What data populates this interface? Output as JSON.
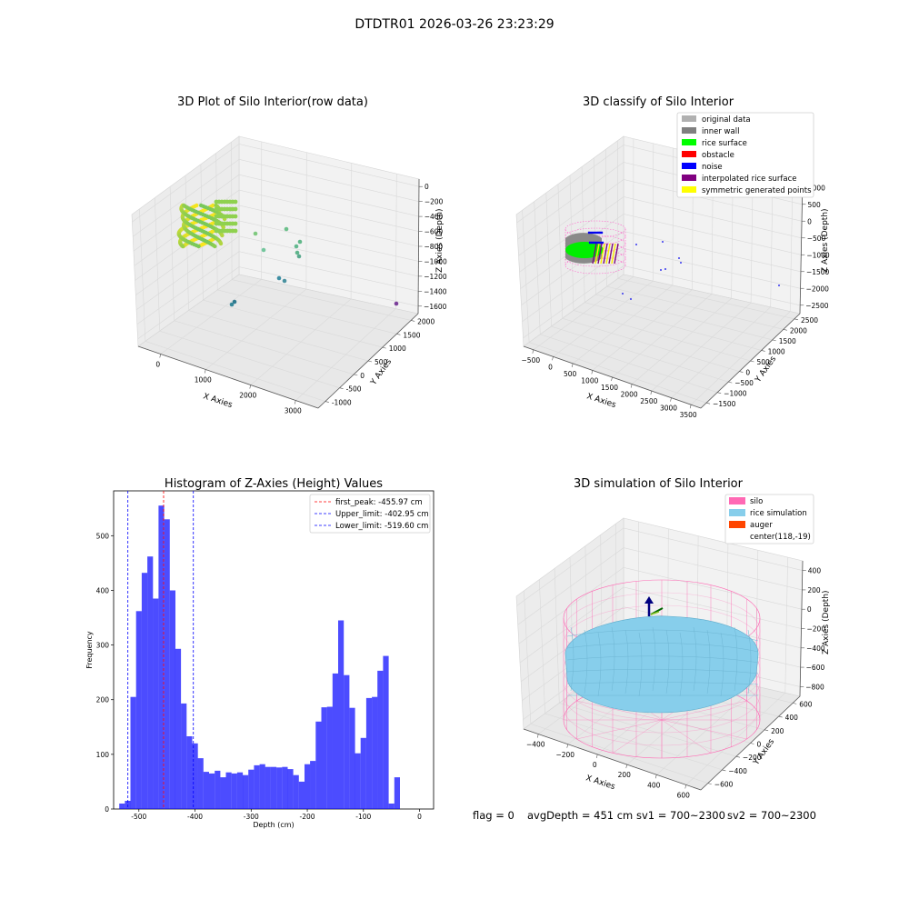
{
  "suptitle": "DTDTR01 2026-03-26 23:23:29",
  "footer": {
    "flag": "flag = 0",
    "avg_depth": "avgDepth = 451 cm",
    "sv1": "sv1 = 700~2300",
    "sv2": "sv2 = 700~2300"
  },
  "colors": {
    "hist_bar": "#0000ff",
    "first_peak": "#ff0000",
    "limits": "#0000ff",
    "silo": "#ff69b4",
    "rice_simulation": "#87ceeb",
    "auger": "#ff4500",
    "pane": "#f2f2f2",
    "grid": "#d9d9d9"
  },
  "chart_data": [
    {
      "type": "scatter",
      "title": "3D Plot of Silo Interior(row data)",
      "xlabel": "X Axies",
      "ylabel": "Y Axies",
      "zlabel": "Z Axies (Depth)",
      "x_ticks": [
        "0",
        "1000",
        "2000",
        "3000"
      ],
      "y_ticks": [
        "-1000",
        "-500",
        "0",
        "500",
        "1000",
        "1500",
        "2000"
      ],
      "z_ticks": [
        "0",
        "−200",
        "−400",
        "−600",
        "−800",
        "−1000",
        "−1200",
        "−1400",
        "−1600"
      ]
    },
    {
      "type": "scatter",
      "title": "3D classify of Silo Interior",
      "xlabel": "X Axies",
      "ylabel": "Y Axies",
      "zlabel": "Z Axies (Depth)",
      "x_ticks": [
        "−500",
        "0",
        "500",
        "1000",
        "1500",
        "2000",
        "2500",
        "3000",
        "3500"
      ],
      "y_ticks": [
        "−1500",
        "−1000",
        "−500",
        "0",
        "500",
        "1000",
        "1500",
        "2000",
        "2500"
      ],
      "z_ticks": [
        "1000",
        "500",
        "0",
        "−500",
        "−1000",
        "−1500",
        "−2000",
        "−2500"
      ],
      "z_ticks_partial_top": "000",
      "legend": [
        {
          "label": "original data",
          "color": "#b0b0b0"
        },
        {
          "label": "inner wall",
          "color": "#808080"
        },
        {
          "label": "rice surface",
          "color": "#00ff00"
        },
        {
          "label": "obstacle",
          "color": "#ff0000"
        },
        {
          "label": "noise",
          "color": "#0000ff"
        },
        {
          "label": "interpolated rice surface",
          "color": "#800080"
        },
        {
          "label": "symmetric generated points",
          "color": "#ffff00"
        }
      ]
    },
    {
      "type": "bar",
      "title": "Histogram of Z-Axies (Height) Values",
      "xlabel": "Depth (cm)",
      "ylabel": "Frequency",
      "xlim": [
        -545,
        25
      ],
      "ylim": [
        0,
        582
      ],
      "x_ticks": [
        -500,
        -400,
        -300,
        -200,
        -100,
        0
      ],
      "y_ticks": [
        0,
        100,
        200,
        300,
        400,
        500
      ],
      "bin_start": -535,
      "bin_width": 10,
      "values": [
        10,
        15,
        205,
        362,
        432,
        462,
        385,
        555,
        530,
        400,
        293,
        193,
        133,
        120,
        93,
        68,
        65,
        70,
        58,
        67,
        65,
        67,
        62,
        72,
        80,
        82,
        77,
        77,
        76,
        77,
        73,
        62,
        50,
        82,
        88,
        160,
        186,
        187,
        248,
        345,
        245,
        185,
        102,
        130,
        203,
        205,
        253,
        280,
        10,
        58
      ],
      "lines": [
        {
          "label": "first_peak: -455.97 cm",
          "x": -455.97,
          "color": "#ff0000"
        },
        {
          "label": "Upper_limit: -402.95 cm",
          "x": -402.95,
          "color": "#0000ff"
        },
        {
          "label": "Lower_limit: -519.60 cm",
          "x": -519.6,
          "color": "#0000ff"
        }
      ]
    },
    {
      "type": "scatter",
      "title": "3D simulation of Silo Interior",
      "xlabel": "X Axies",
      "ylabel": "Y Axies",
      "zlabel": "Z Axies (Depth)",
      "x_ticks": [
        "−400",
        "−200",
        "0",
        "200",
        "400",
        "600"
      ],
      "y_ticks": [
        "−600",
        "−400",
        "−200",
        "0",
        "200",
        "400",
        "600"
      ],
      "z_ticks": [
        "400",
        "200",
        "0",
        "−200",
        "−400",
        "−600",
        "−800"
      ],
      "legend": [
        {
          "label": "silo",
          "color": "#ff69b4"
        },
        {
          "label": "rice simulation",
          "color": "#87ceeb"
        },
        {
          "label": "auger",
          "color": "#ff4500"
        },
        {
          "label": "center(118,-19)",
          "color": ""
        }
      ]
    }
  ]
}
